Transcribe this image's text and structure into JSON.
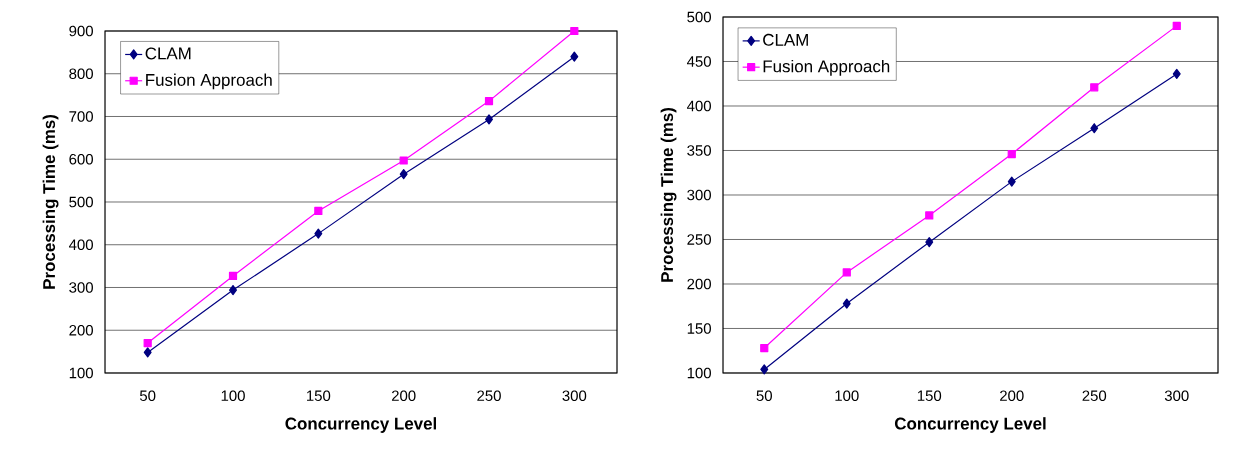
{
  "chart_data": [
    {
      "type": "line",
      "xlabel": "Concurrency Level",
      "ylabel": "Processing Time (ms)",
      "categories": [
        "50",
        "100",
        "150",
        "200",
        "250",
        "300"
      ],
      "ylim": [
        100,
        900
      ],
      "yticks": [
        100,
        200,
        300,
        400,
        500,
        600,
        700,
        800,
        900
      ],
      "grid": "y",
      "legend": "top left",
      "series": [
        {
          "name": "CLAM",
          "color": "#000080",
          "marker": "diamond",
          "values": [
            148,
            294,
            426,
            565,
            693,
            840
          ]
        },
        {
          "name": "Fusion Approach",
          "color": "#ff00ff",
          "marker": "square",
          "values": [
            170,
            327,
            479,
            597,
            736,
            900
          ]
        }
      ]
    },
    {
      "type": "line",
      "xlabel": "Concurrency Level",
      "ylabel": "Processing Time (ms)",
      "categories": [
        "50",
        "100",
        "150",
        "200",
        "250",
        "300"
      ],
      "ylim": [
        100,
        500
      ],
      "yticks": [
        100,
        150,
        200,
        250,
        300,
        350,
        400,
        450,
        500
      ],
      "grid": "y",
      "legend": "top left",
      "series": [
        {
          "name": "CLAM",
          "color": "#000080",
          "marker": "diamond",
          "values": [
            104,
            178,
            247,
            315,
            375,
            436
          ]
        },
        {
          "name": "Fusion Approach",
          "color": "#ff00ff",
          "marker": "square",
          "values": [
            128,
            213,
            277,
            346,
            421,
            490
          ]
        }
      ]
    }
  ]
}
